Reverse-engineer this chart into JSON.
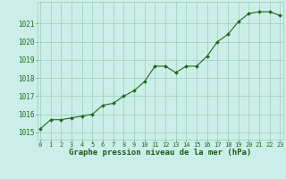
{
  "x": [
    0,
    1,
    2,
    3,
    4,
    5,
    6,
    7,
    8,
    9,
    10,
    11,
    12,
    13,
    14,
    15,
    16,
    17,
    18,
    19,
    20,
    21,
    22,
    23
  ],
  "y": [
    1015.2,
    1015.7,
    1015.7,
    1015.8,
    1015.9,
    1016.0,
    1016.5,
    1016.6,
    1017.0,
    1017.3,
    1017.8,
    1018.65,
    1018.65,
    1018.3,
    1018.65,
    1018.65,
    1019.2,
    1020.0,
    1020.4,
    1021.1,
    1021.55,
    1021.65,
    1021.65,
    1021.45
  ],
  "line_color": "#1a6b1a",
  "marker_color": "#1a6b1a",
  "bg_color": "#cceee8",
  "grid_color": "#99ccbb",
  "xlabel": "Graphe pression niveau de la mer (hPa)",
  "xlabel_color": "#1a5a1a",
  "xlabel_fontsize": 6.5,
  "ylabel_ticks": [
    1015,
    1016,
    1017,
    1018,
    1019,
    1020,
    1021
  ],
  "ylim": [
    1014.6,
    1022.2
  ],
  "xlim": [
    -0.3,
    23.3
  ],
  "tick_fontsize": 5.5,
  "xtick_fontsize": 5.0
}
